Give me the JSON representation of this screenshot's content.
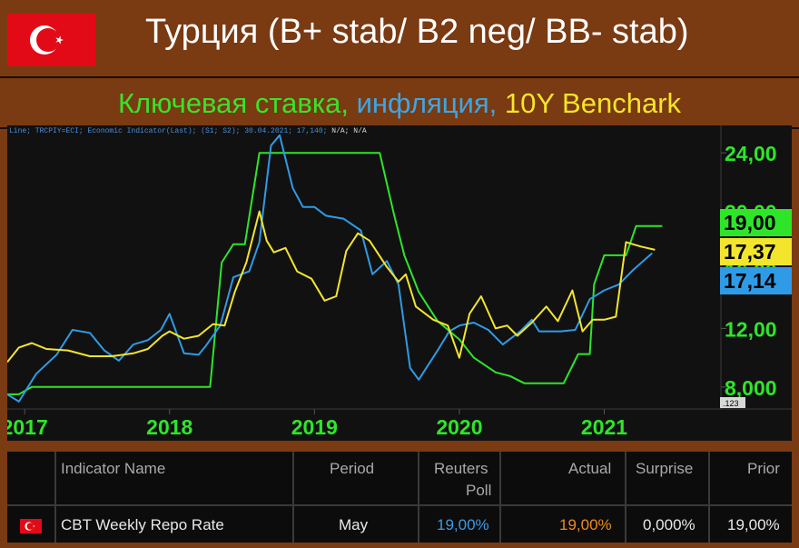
{
  "header": {
    "title": "Турция (B+ stab/ B2 neg/ BB- stab)",
    "subtitle_part1": "Ключевая ставка,",
    "subtitle_part2": "инфляция,",
    "subtitle_part3": "10Y Benchark"
  },
  "colors": {
    "background": "#7a3a12",
    "key_rate": "#2ee52a",
    "inflation": "#2f9be6",
    "bond_10y": "#f3e52c",
    "flag_red": "#e30a17"
  },
  "chart_data": {
    "type": "line",
    "legend_text": "Line; TRCPIY=ECI; Economic Indicator(Last); (S1; S2); 30.04.2021; 17,140;",
    "legend_na": "N/A; N/A",
    "xlabel": "",
    "ylabel": "",
    "x_ticks": [
      "2017",
      "2018",
      "2019",
      "2020",
      "2021"
    ],
    "y_ticks": [
      "24,00",
      "20,00",
      "16,00",
      "12,00",
      "8,000"
    ],
    "ylim": [
      6.5,
      25.5
    ],
    "y_axis_badge": ".123",
    "last_value_labels": [
      "19,00",
      "17,37",
      "17,14"
    ],
    "grid": false,
    "series": [
      {
        "key": "key_rate",
        "values": [
          [
            2016.88,
            7.5
          ],
          [
            2016.96,
            7.5
          ],
          [
            2017.05,
            8.0
          ],
          [
            2017.2,
            8.0
          ],
          [
            2017.4,
            8.0
          ],
          [
            2017.6,
            8.0
          ],
          [
            2017.8,
            8.0
          ],
          [
            2018.0,
            8.0
          ],
          [
            2018.15,
            8.0
          ],
          [
            2018.28,
            8.0
          ],
          [
            2018.36,
            16.5
          ],
          [
            2018.44,
            17.75
          ],
          [
            2018.52,
            17.75
          ],
          [
            2018.62,
            24.0
          ],
          [
            2018.8,
            24.0
          ],
          [
            2019.0,
            24.0
          ],
          [
            2019.2,
            24.0
          ],
          [
            2019.45,
            24.0
          ],
          [
            2019.55,
            19.75
          ],
          [
            2019.62,
            17.0
          ],
          [
            2019.72,
            14.5
          ],
          [
            2019.85,
            12.5
          ],
          [
            2020.0,
            11.25
          ],
          [
            2020.1,
            10.0
          ],
          [
            2020.25,
            9.0
          ],
          [
            2020.35,
            8.75
          ],
          [
            2020.45,
            8.25
          ],
          [
            2020.6,
            8.25
          ],
          [
            2020.72,
            8.25
          ],
          [
            2020.82,
            10.25
          ],
          [
            2020.9,
            10.25
          ],
          [
            2020.93,
            15.0
          ],
          [
            2021.0,
            17.0
          ],
          [
            2021.15,
            17.0
          ],
          [
            2021.22,
            19.0
          ],
          [
            2021.4,
            19.0
          ]
        ]
      },
      {
        "key": "inflation",
        "values": [
          [
            2016.88,
            7.5
          ],
          [
            2016.96,
            7.0
          ],
          [
            2017.08,
            8.9
          ],
          [
            2017.22,
            10.2
          ],
          [
            2017.33,
            11.9
          ],
          [
            2017.45,
            11.7
          ],
          [
            2017.55,
            10.5
          ],
          [
            2017.65,
            9.8
          ],
          [
            2017.75,
            10.9
          ],
          [
            2017.85,
            11.2
          ],
          [
            2017.94,
            11.9
          ],
          [
            2018.0,
            13.0
          ],
          [
            2018.1,
            10.3
          ],
          [
            2018.2,
            10.2
          ],
          [
            2018.25,
            10.8
          ],
          [
            2018.35,
            12.2
          ],
          [
            2018.44,
            15.5
          ],
          [
            2018.55,
            15.9
          ],
          [
            2018.62,
            17.9
          ],
          [
            2018.7,
            24.5
          ],
          [
            2018.76,
            25.2
          ],
          [
            2018.85,
            21.6
          ],
          [
            2018.92,
            20.3
          ],
          [
            2019.0,
            20.3
          ],
          [
            2019.08,
            19.7
          ],
          [
            2019.2,
            19.5
          ],
          [
            2019.32,
            18.7
          ],
          [
            2019.4,
            15.7
          ],
          [
            2019.5,
            16.6
          ],
          [
            2019.58,
            15.0
          ],
          [
            2019.66,
            9.3
          ],
          [
            2019.72,
            8.5
          ],
          [
            2019.85,
            10.5
          ],
          [
            2019.93,
            11.8
          ],
          [
            2020.0,
            12.2
          ],
          [
            2020.1,
            12.4
          ],
          [
            2020.2,
            11.9
          ],
          [
            2020.3,
            10.9
          ],
          [
            2020.42,
            11.8
          ],
          [
            2020.5,
            12.6
          ],
          [
            2020.55,
            11.8
          ],
          [
            2020.7,
            11.8
          ],
          [
            2020.8,
            11.9
          ],
          [
            2020.9,
            14.0
          ],
          [
            2021.0,
            14.6
          ],
          [
            2021.1,
            15.0
          ],
          [
            2021.2,
            16.0
          ],
          [
            2021.33,
            17.14
          ]
        ]
      },
      {
        "key": "bond_10y",
        "values": [
          [
            2016.88,
            9.7
          ],
          [
            2016.96,
            10.7
          ],
          [
            2017.05,
            11.0
          ],
          [
            2017.15,
            10.6
          ],
          [
            2017.3,
            10.5
          ],
          [
            2017.45,
            10.1
          ],
          [
            2017.6,
            10.1
          ],
          [
            2017.75,
            10.3
          ],
          [
            2017.85,
            10.6
          ],
          [
            2017.95,
            11.5
          ],
          [
            2018.0,
            11.8
          ],
          [
            2018.1,
            11.3
          ],
          [
            2018.2,
            11.5
          ],
          [
            2018.3,
            12.3
          ],
          [
            2018.38,
            12.2
          ],
          [
            2018.45,
            14.5
          ],
          [
            2018.53,
            16.5
          ],
          [
            2018.62,
            20.0
          ],
          [
            2018.67,
            18.0
          ],
          [
            2018.72,
            17.2
          ],
          [
            2018.8,
            17.5
          ],
          [
            2018.88,
            15.9
          ],
          [
            2018.98,
            15.4
          ],
          [
            2019.07,
            13.9
          ],
          [
            2019.15,
            14.2
          ],
          [
            2019.22,
            17.3
          ],
          [
            2019.3,
            18.5
          ],
          [
            2019.38,
            18.0
          ],
          [
            2019.5,
            16.2
          ],
          [
            2019.58,
            15.2
          ],
          [
            2019.63,
            15.7
          ],
          [
            2019.7,
            13.5
          ],
          [
            2019.82,
            12.6
          ],
          [
            2019.92,
            12.2
          ],
          [
            2020.0,
            10.0
          ],
          [
            2020.07,
            13.0
          ],
          [
            2020.15,
            14.2
          ],
          [
            2020.25,
            12.0
          ],
          [
            2020.33,
            12.2
          ],
          [
            2020.4,
            11.5
          ],
          [
            2020.5,
            12.4
          ],
          [
            2020.6,
            13.5
          ],
          [
            2020.68,
            12.5
          ],
          [
            2020.78,
            14.6
          ],
          [
            2020.85,
            11.8
          ],
          [
            2020.92,
            12.6
          ],
          [
            2021.0,
            12.6
          ],
          [
            2021.08,
            12.8
          ],
          [
            2021.15,
            17.9
          ],
          [
            2021.25,
            17.6
          ],
          [
            2021.35,
            17.37
          ]
        ]
      }
    ]
  },
  "table": {
    "headers": {
      "indicator": "Indicator Name",
      "period": "Period",
      "poll_line1": "Reuters",
      "poll_line2": "Poll",
      "actual": "Actual",
      "surprise": "Surprise",
      "prior": "Prior"
    },
    "row": {
      "indicator": "CBT Weekly Repo Rate",
      "period": "May",
      "poll": "19,00%",
      "actual": "19,00%",
      "surprise": "0,000%",
      "prior": "19,00%"
    },
    "colors": {
      "poll": "#3b9be6",
      "actual": "#f08a1e"
    }
  }
}
